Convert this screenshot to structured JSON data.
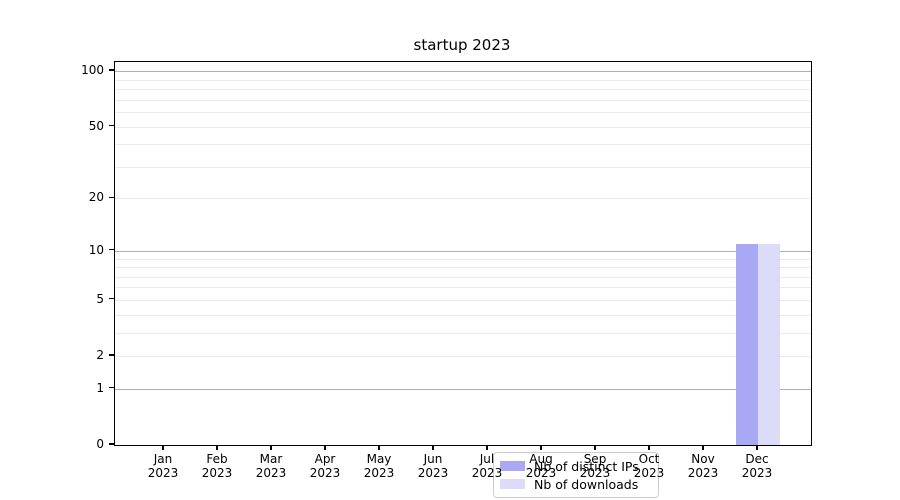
{
  "chart_data": {
    "type": "bar",
    "title": "startup 2023",
    "categories": [
      "Jan 2023",
      "Feb 2023",
      "Mar 2023",
      "Apr 2023",
      "May 2023",
      "Jun 2023",
      "Jul 2023",
      "Aug 2023",
      "Sep 2023",
      "Oct 2023",
      "Nov 2023",
      "Dec 2023"
    ],
    "xaxis": {
      "tick_labels": [
        {
          "month": "Jan",
          "year": "2023"
        },
        {
          "month": "Feb",
          "year": "2023"
        },
        {
          "month": "Mar",
          "year": "2023"
        },
        {
          "month": "Apr",
          "year": "2023"
        },
        {
          "month": "May",
          "year": "2023"
        },
        {
          "month": "Jun",
          "year": "2023"
        },
        {
          "month": "Jul",
          "year": "2023"
        },
        {
          "month": "Aug",
          "year": "2023"
        },
        {
          "month": "Sep",
          "year": "2023"
        },
        {
          "month": "Oct",
          "year": "2023"
        },
        {
          "month": "Nov",
          "year": "2023"
        },
        {
          "month": "Dec",
          "year": "2023"
        }
      ]
    },
    "yaxis": {
      "scale": "log1p",
      "range": [
        0,
        112
      ],
      "tick_values": [
        0,
        1,
        2,
        5,
        10,
        20,
        50,
        100
      ],
      "tick_labels": [
        "0",
        "1",
        "2",
        "5",
        "10",
        "20",
        "50",
        "100"
      ],
      "major_gridlines": [
        1,
        10,
        100
      ],
      "minor_gridlines": [
        2,
        3,
        4,
        5,
        6,
        7,
        8,
        9,
        20,
        30,
        40,
        50,
        60,
        70,
        80,
        90
      ]
    },
    "series": [
      {
        "name": "Nb of distinct IPs",
        "color": "#a8a8f4",
        "values": [
          0,
          0,
          0,
          0,
          0,
          0,
          0,
          0,
          0,
          0,
          0,
          11
        ]
      },
      {
        "name": "Nb of downloads",
        "color": "#dcdcf9",
        "values": [
          0,
          0,
          0,
          0,
          0,
          0,
          0,
          0,
          0,
          0,
          0,
          11
        ]
      }
    ],
    "legend": {
      "position": "bottom-center",
      "entries": [
        "Nb of distinct IPs",
        "Nb of downloads"
      ]
    },
    "grid": "on"
  }
}
